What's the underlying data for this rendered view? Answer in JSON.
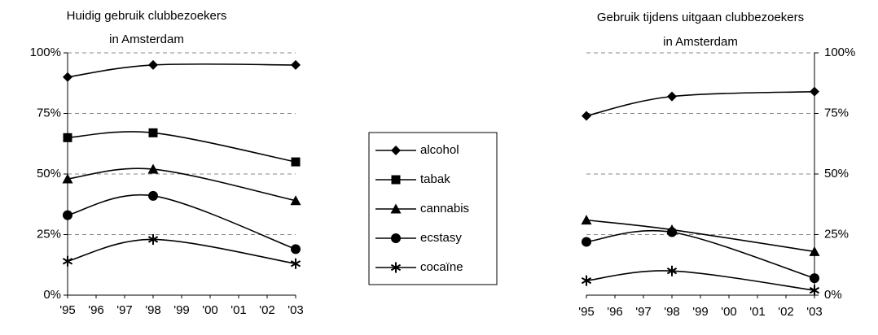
{
  "chart_data": [
    {
      "type": "line",
      "title": [
        "Huidig gebruik clubbezoekers",
        "in Amsterdam"
      ],
      "yaxis": "left",
      "xlim": [
        1995,
        2003
      ],
      "xticks": [
        {
          "value": 1995,
          "label": "'95"
        },
        {
          "value": 1996,
          "label": "'96"
        },
        {
          "value": 1997,
          "label": "'97"
        },
        {
          "value": 1998,
          "label": "'98"
        },
        {
          "value": 1999,
          "label": "'99"
        },
        {
          "value": 2000,
          "label": "'00"
        },
        {
          "value": 2001,
          "label": "'01"
        },
        {
          "value": 2002,
          "label": "'02"
        },
        {
          "value": 2003,
          "label": "'03"
        }
      ],
      "ylim": [
        0,
        100
      ],
      "yticks": [
        {
          "value": 0,
          "label": "0%"
        },
        {
          "value": 25,
          "label": "25%"
        },
        {
          "value": 50,
          "label": "50%"
        },
        {
          "value": 75,
          "label": "75%"
        },
        {
          "value": 100,
          "label": "100%"
        }
      ],
      "grid": true,
      "x": [
        1995,
        1998,
        2003
      ],
      "series": [
        {
          "name": "alcohol",
          "color": "#000000",
          "marker": "diamond",
          "values": [
            90,
            95,
            95
          ]
        },
        {
          "name": "tabak",
          "color": "#000000",
          "marker": "square",
          "values": [
            65,
            67,
            55
          ]
        },
        {
          "name": "cannabis",
          "color": "#000000",
          "marker": "triangle",
          "values": [
            48,
            52,
            39
          ]
        },
        {
          "name": "ecstasy",
          "color": "#000000",
          "marker": "circle",
          "values": [
            33,
            41,
            19
          ]
        },
        {
          "name": "cocaïne",
          "color": "#000000",
          "marker": "star",
          "values": [
            14,
            23,
            13
          ]
        }
      ]
    },
    {
      "type": "line",
      "title": [
        "Gebruik tijdens uitgaan clubbezoekers",
        "in Amsterdam"
      ],
      "yaxis": "right",
      "xlim": [
        1995,
        2003
      ],
      "xticks": [
        {
          "value": 1995,
          "label": "'95"
        },
        {
          "value": 1996,
          "label": "'96"
        },
        {
          "value": 1997,
          "label": "'97"
        },
        {
          "value": 1998,
          "label": "'98"
        },
        {
          "value": 1999,
          "label": "'99"
        },
        {
          "value": 2000,
          "label": "'00"
        },
        {
          "value": 2001,
          "label": "'01"
        },
        {
          "value": 2002,
          "label": "'02"
        },
        {
          "value": 2003,
          "label": "'03"
        }
      ],
      "ylim": [
        0,
        100
      ],
      "yticks": [
        {
          "value": 0,
          "label": "0%"
        },
        {
          "value": 25,
          "label": "25%"
        },
        {
          "value": 50,
          "label": "50%"
        },
        {
          "value": 75,
          "label": "75%"
        },
        {
          "value": 100,
          "label": "100%"
        }
      ],
      "grid": true,
      "x": [
        1995,
        1998,
        2003
      ],
      "series": [
        {
          "name": "alcohol",
          "color": "#000000",
          "marker": "diamond",
          "values": [
            74,
            82,
            84
          ]
        },
        {
          "name": "cannabis",
          "color": "#000000",
          "marker": "triangle",
          "values": [
            31,
            27,
            18
          ]
        },
        {
          "name": "ecstasy",
          "color": "#000000",
          "marker": "circle",
          "values": [
            22,
            26,
            7
          ]
        },
        {
          "name": "cocaïne",
          "color": "#000000",
          "marker": "star",
          "values": [
            6,
            10,
            2
          ]
        }
      ]
    }
  ]
}
